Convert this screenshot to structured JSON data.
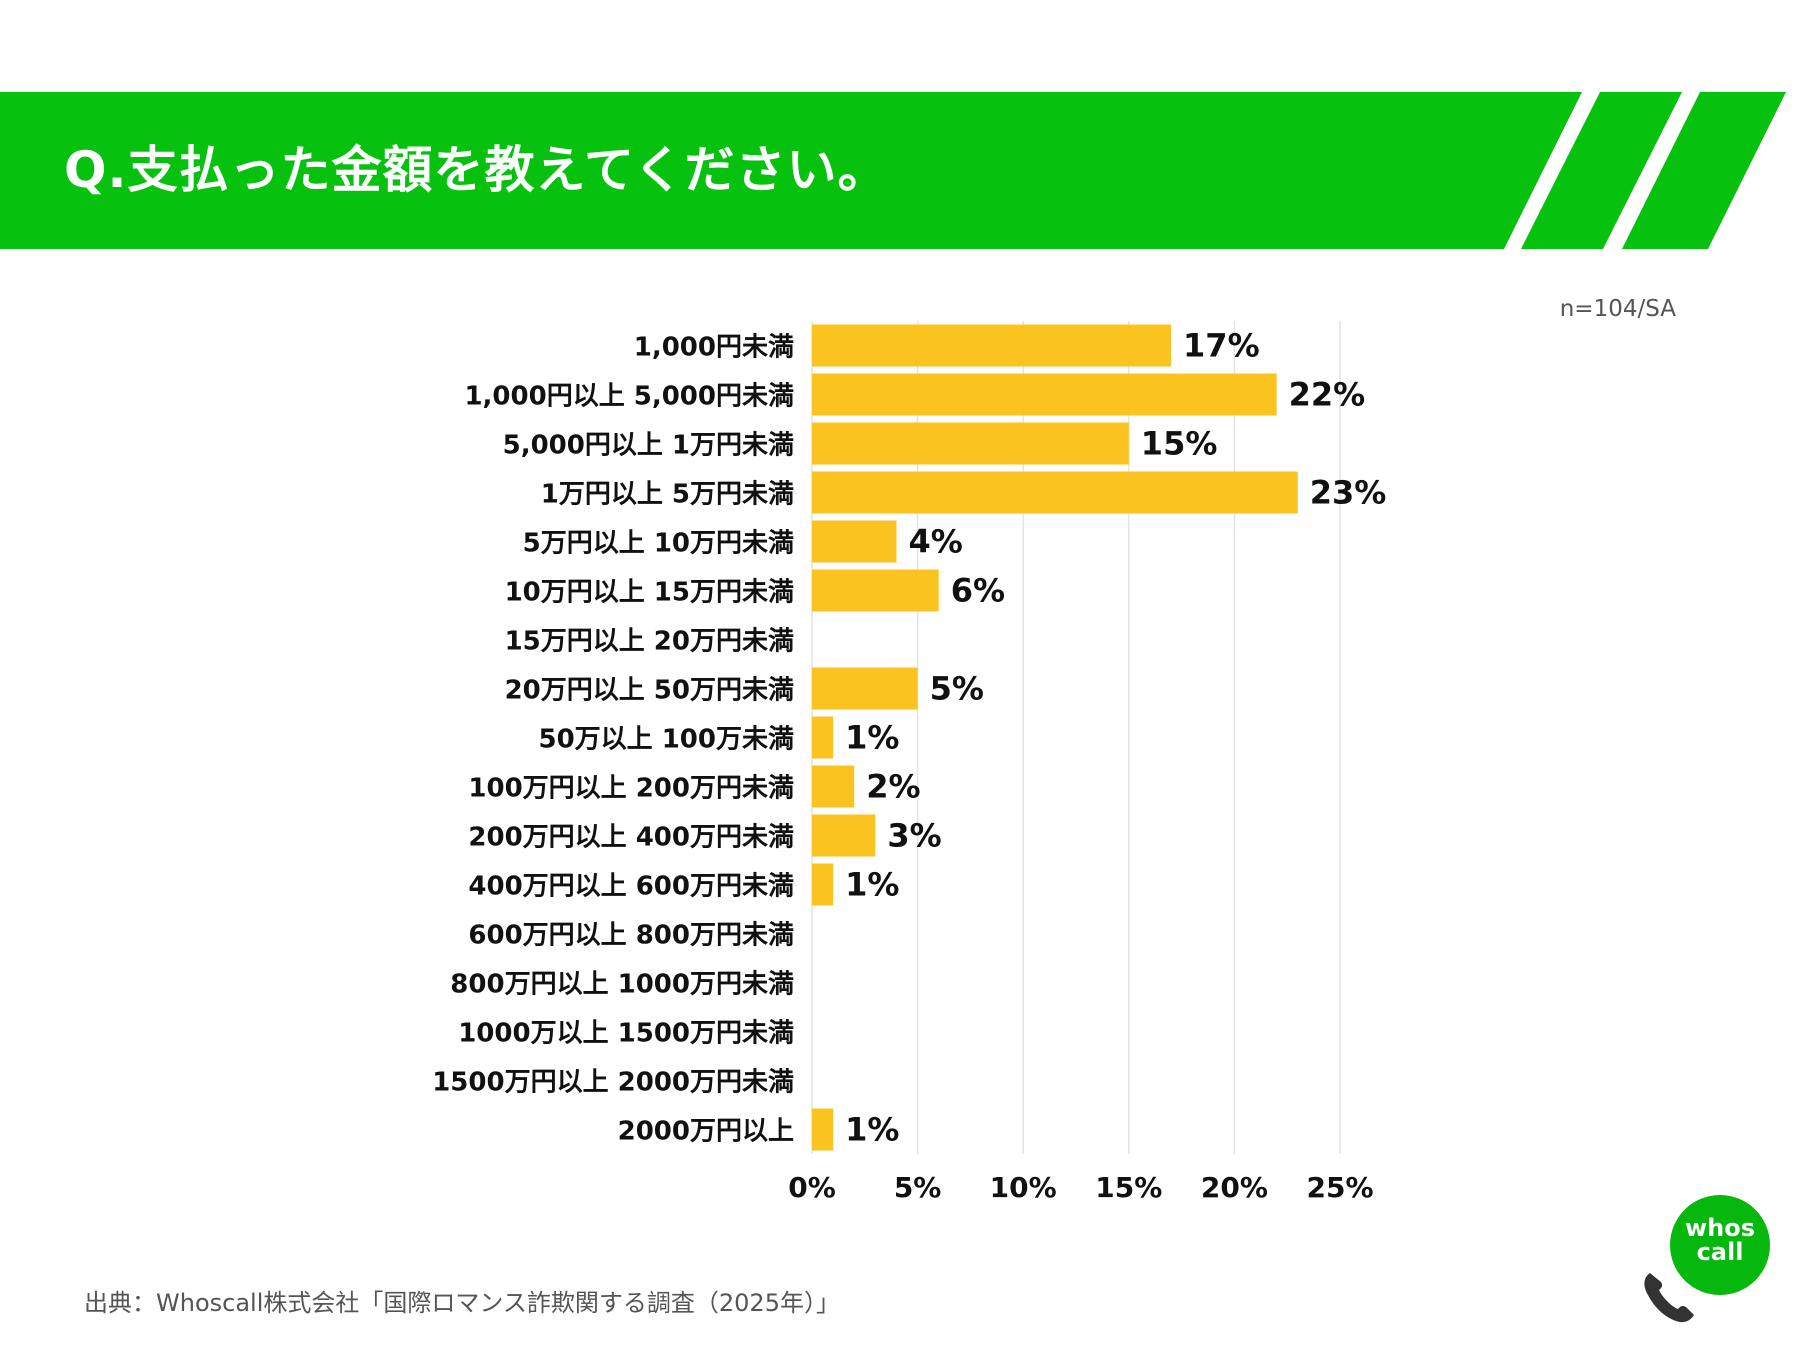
{
  "header": {
    "title": "Q.支払った金額を教えてください。",
    "color": "#06c10e"
  },
  "sample_note": "n=104/SA",
  "chart_data": {
    "type": "bar",
    "orientation": "horizontal",
    "title": "Q.支払った金額を教えてください。",
    "categories": [
      "1,000円未満",
      "1,000円以上 5,000円未満",
      "5,000円以上 1万円未満",
      "1万円以上 5万円未満",
      "5万円以上 10万円未満",
      "10万円以上 15万円未満",
      "15万円以上 20万円未満",
      "20万円以上 50万円未満",
      "50万以上 100万未満",
      "100万円以上 200万円未満",
      "200万円以上 400万円未満",
      "400万円以上 600万円未満",
      "600万円以上 800万円未満",
      "800万円以上 1000万円未満",
      "1000万以上 1500万円未満",
      "1500万円以上 2000万円未満",
      "2000万円以上"
    ],
    "values": [
      17,
      22,
      15,
      23,
      4,
      6,
      0,
      5,
      1,
      2,
      3,
      1,
      0,
      0,
      0,
      0,
      1
    ],
    "data_labels": [
      "17%",
      "22%",
      "15%",
      "23%",
      "4%",
      "6%",
      "",
      "5%",
      "1%",
      "2%",
      "3%",
      "1%",
      "",
      "",
      "",
      "",
      "1%"
    ],
    "xlim": [
      0,
      25
    ],
    "xticks": [
      0,
      5,
      10,
      15,
      20,
      25
    ],
    "xtick_labels": [
      "0%",
      "5%",
      "10%",
      "15%",
      "20%",
      "25%"
    ],
    "bar_color": "#fbc320",
    "grid": true,
    "xlabel": "",
    "ylabel": ""
  },
  "source": "出典：Whoscall株式会社「国際ロマンス詐欺関する調査（2025年）」",
  "logo": {
    "line1": "whos",
    "line2": "call",
    "color": "#06b80e"
  }
}
